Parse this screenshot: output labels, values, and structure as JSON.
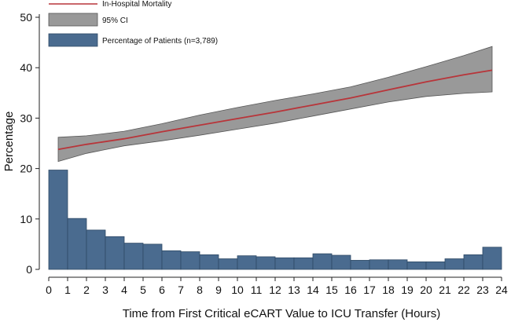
{
  "chart_data": {
    "type": "bar",
    "title": "",
    "xlabel": "Time from First Critical eCART Value to ICU Transfer (Hours)",
    "ylabel": "Percentage",
    "xlim": [
      0,
      24
    ],
    "ylim": [
      0,
      50
    ],
    "x_ticks": [
      "0",
      "1",
      "2",
      "3",
      "4",
      "5",
      "6",
      "7",
      "8",
      "9",
      "10",
      "11",
      "12",
      "13",
      "14",
      "15",
      "16",
      "17",
      "18",
      "19",
      "20",
      "21",
      "22",
      "23",
      "24"
    ],
    "y_ticks": [
      "0",
      "10",
      "20",
      "30",
      "40",
      "50"
    ],
    "grid": false,
    "legend_position": "top-left",
    "bar_series": {
      "name": "Percentage of Patients (n=3,789)",
      "color": "#4a6b8f",
      "bins": [
        [
          0,
          1
        ],
        [
          1,
          2
        ],
        [
          2,
          3
        ],
        [
          3,
          4
        ],
        [
          4,
          5
        ],
        [
          5,
          6
        ],
        [
          6,
          7
        ],
        [
          7,
          8
        ],
        [
          8,
          9
        ],
        [
          9,
          10
        ],
        [
          10,
          11
        ],
        [
          11,
          12
        ],
        [
          12,
          13
        ],
        [
          13,
          14
        ],
        [
          14,
          15
        ],
        [
          15,
          16
        ],
        [
          16,
          17
        ],
        [
          17,
          18
        ],
        [
          18,
          19
        ],
        [
          19,
          20
        ],
        [
          20,
          21
        ],
        [
          21,
          22
        ],
        [
          22,
          23
        ],
        [
          23,
          24
        ]
      ],
      "values": [
        19.7,
        10.1,
        7.8,
        6.5,
        5.2,
        5.0,
        3.7,
        3.5,
        2.9,
        2.1,
        2.7,
        2.5,
        2.3,
        2.3,
        3.1,
        2.8,
        1.8,
        1.9,
        1.9,
        1.5,
        1.5,
        2.1,
        2.9,
        4.4
      ]
    },
    "line_series": {
      "name": "In-Hospital Mortality",
      "color": "#b8353a",
      "x": [
        0.5,
        2,
        4,
        6,
        8,
        10,
        12,
        14,
        16,
        18,
        20,
        22,
        23.5
      ],
      "y": [
        23.8,
        24.8,
        25.9,
        27.3,
        28.6,
        29.9,
        31.2,
        32.6,
        34.0,
        35.6,
        37.2,
        38.6,
        39.5
      ]
    },
    "ci_series": {
      "name": "95% CI",
      "color": "#999999",
      "x": [
        0.5,
        2,
        4,
        6,
        8,
        10,
        12,
        14,
        16,
        18,
        20,
        22,
        23.5
      ],
      "lower": [
        21.4,
        23.0,
        24.5,
        25.5,
        26.6,
        27.8,
        29.0,
        30.4,
        31.8,
        33.2,
        34.3,
        34.9,
        35.2
      ],
      "upper": [
        26.2,
        26.5,
        27.4,
        28.9,
        30.6,
        32.1,
        33.5,
        34.8,
        36.2,
        38.1,
        40.2,
        42.4,
        44.2
      ]
    }
  }
}
